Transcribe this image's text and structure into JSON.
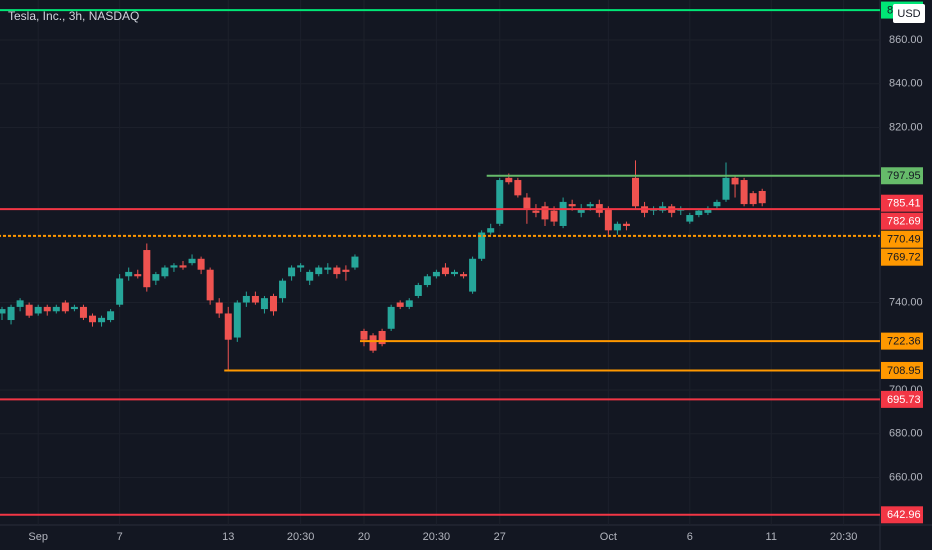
{
  "chart_data": {
    "type": "candlestick",
    "title": "Tesla, Inc., 3h, NASDAQ",
    "currency": "USD",
    "up_color": "#26a69a",
    "down_color": "#ef5350",
    "ylim": [
      638.3,
      878.3
    ],
    "yticks": [
      {
        "value": 860,
        "label": "860.00"
      },
      {
        "value": 840,
        "label": "840.00"
      },
      {
        "value": 820,
        "label": "820.00"
      },
      {
        "value": 740,
        "label": "740.00"
      },
      {
        "value": 700,
        "label": "700.00"
      },
      {
        "value": 680,
        "label": "680.00"
      },
      {
        "value": 660,
        "label": "660.00"
      }
    ],
    "xticks": [
      {
        "value": 4,
        "label": "Sep"
      },
      {
        "value": 13,
        "label": "7"
      },
      {
        "value": 25,
        "label": "13"
      },
      {
        "value": 33,
        "label": "20:30"
      },
      {
        "value": 40,
        "label": "20"
      },
      {
        "value": 48,
        "label": "20:30"
      },
      {
        "value": 55,
        "label": "27"
      },
      {
        "value": 67,
        "label": "Oct"
      },
      {
        "value": 76,
        "label": "6"
      },
      {
        "value": 85,
        "label": "11"
      },
      {
        "value": 93,
        "label": "20:30"
      }
    ],
    "grid": true,
    "ohlc": [
      [
        735,
        738,
        732,
        737
      ],
      [
        732,
        739,
        730,
        738
      ],
      [
        738,
        742,
        736,
        741
      ],
      [
        739,
        740,
        733,
        734
      ],
      [
        735,
        739,
        734,
        738
      ],
      [
        738,
        739,
        734,
        736
      ],
      [
        736,
        739,
        735,
        738
      ],
      [
        740,
        741,
        735,
        736
      ],
      [
        737,
        739,
        736,
        738
      ],
      [
        738,
        739,
        732,
        733
      ],
      [
        734,
        735,
        729,
        731
      ],
      [
        731,
        734,
        729,
        733
      ],
      [
        732,
        737,
        731,
        736
      ],
      [
        739,
        753,
        738,
        751
      ],
      [
        752,
        756,
        750,
        754
      ],
      [
        753,
        755,
        751,
        752
      ],
      [
        764,
        767,
        745,
        747
      ],
      [
        750,
        754,
        748,
        753
      ],
      [
        752,
        757,
        751,
        756
      ],
      [
        756,
        758,
        754,
        757
      ],
      [
        757,
        759,
        755,
        756
      ],
      [
        758,
        762,
        757,
        760
      ],
      [
        760,
        761,
        753,
        755
      ],
      [
        755,
        756,
        739,
        741
      ],
      [
        740,
        742,
        733,
        735
      ],
      [
        735,
        738,
        709,
        723
      ],
      [
        724,
        741,
        722,
        740
      ],
      [
        740,
        745,
        738,
        743
      ],
      [
        743,
        745,
        739,
        740
      ],
      [
        737,
        743,
        735,
        742
      ],
      [
        743,
        744,
        734,
        736
      ],
      [
        742,
        751,
        740,
        750
      ],
      [
        752,
        757,
        750,
        756
      ],
      [
        756,
        758,
        754,
        757
      ],
      [
        750,
        755,
        748,
        754
      ],
      [
        753,
        757,
        752,
        756
      ],
      [
        755,
        758,
        753,
        756
      ],
      [
        756,
        757,
        751,
        753
      ],
      [
        755,
        757,
        750,
        754
      ],
      [
        756,
        762,
        755,
        761
      ],
      [
        727,
        728,
        720,
        723
      ],
      [
        725,
        726,
        717,
        718
      ],
      [
        727,
        728,
        720,
        721
      ],
      [
        728,
        739,
        727,
        738
      ],
      [
        740,
        741,
        737,
        738
      ],
      [
        738,
        742,
        737,
        741
      ],
      [
        743,
        749,
        742,
        748
      ],
      [
        748,
        753,
        747,
        752
      ],
      [
        752,
        755,
        751,
        754
      ],
      [
        756,
        758,
        752,
        753
      ],
      [
        753,
        755,
        752,
        754
      ],
      [
        753,
        754,
        751,
        752
      ],
      [
        745,
        761,
        744,
        760
      ],
      [
        760,
        773,
        759,
        772
      ],
      [
        772,
        776,
        771,
        774
      ],
      [
        776,
        797,
        775,
        796
      ],
      [
        797,
        799,
        794,
        795
      ],
      [
        796,
        797,
        788,
        789
      ],
      [
        788,
        790,
        776,
        783
      ],
      [
        782,
        785,
        779,
        781
      ],
      [
        784,
        786,
        775,
        778
      ],
      [
        782,
        784,
        775,
        777
      ],
      [
        775,
        788,
        774,
        786
      ],
      [
        785,
        787,
        782,
        784
      ],
      [
        781,
        785,
        779,
        783
      ],
      [
        784,
        786,
        782,
        785
      ],
      [
        785,
        787,
        779,
        781
      ],
      [
        783,
        784,
        770,
        773
      ],
      [
        773,
        777,
        771,
        776
      ],
      [
        776,
        777,
        773,
        775
      ],
      [
        797,
        805,
        783,
        784
      ],
      [
        784,
        786,
        779,
        781
      ],
      [
        782,
        784,
        780,
        783
      ],
      [
        782,
        786,
        781,
        784
      ],
      [
        784,
        785,
        779,
        781
      ],
      [
        782,
        784,
        780,
        783
      ],
      [
        777,
        781,
        776,
        780
      ],
      [
        780,
        783,
        779,
        782
      ],
      [
        781,
        784,
        780,
        783
      ],
      [
        784,
        787,
        783,
        786
      ],
      [
        787,
        804,
        786,
        797
      ],
      [
        797,
        798,
        788,
        794
      ],
      [
        796,
        797,
        784,
        785
      ],
      [
        790,
        791,
        784,
        785
      ],
      [
        791,
        792,
        784,
        785.41
      ]
    ],
    "levels": [
      {
        "value": 873.7,
        "color": "#00e676",
        "start": 0
      },
      {
        "value": 797.95,
        "color": "#66bb6a",
        "start": 54
      },
      {
        "value": 782.69,
        "color": "#f23645",
        "start": 0
      },
      {
        "value": 770.49,
        "color": "#ff9800",
        "start": 0,
        "dashed": true
      },
      {
        "value": 722.36,
        "color": "#ff9800",
        "start": 40
      },
      {
        "value": 708.95,
        "color": "#ff9800",
        "start": 25
      },
      {
        "value": 695.73,
        "color": "#f23645",
        "start": 0
      },
      {
        "value": 642.96,
        "color": "#f23645",
        "start": 0
      }
    ],
    "price_labels": [
      {
        "value": 785.41,
        "color": "#f23645"
      },
      {
        "value": 769.72,
        "color": "#ff9800"
      }
    ]
  }
}
